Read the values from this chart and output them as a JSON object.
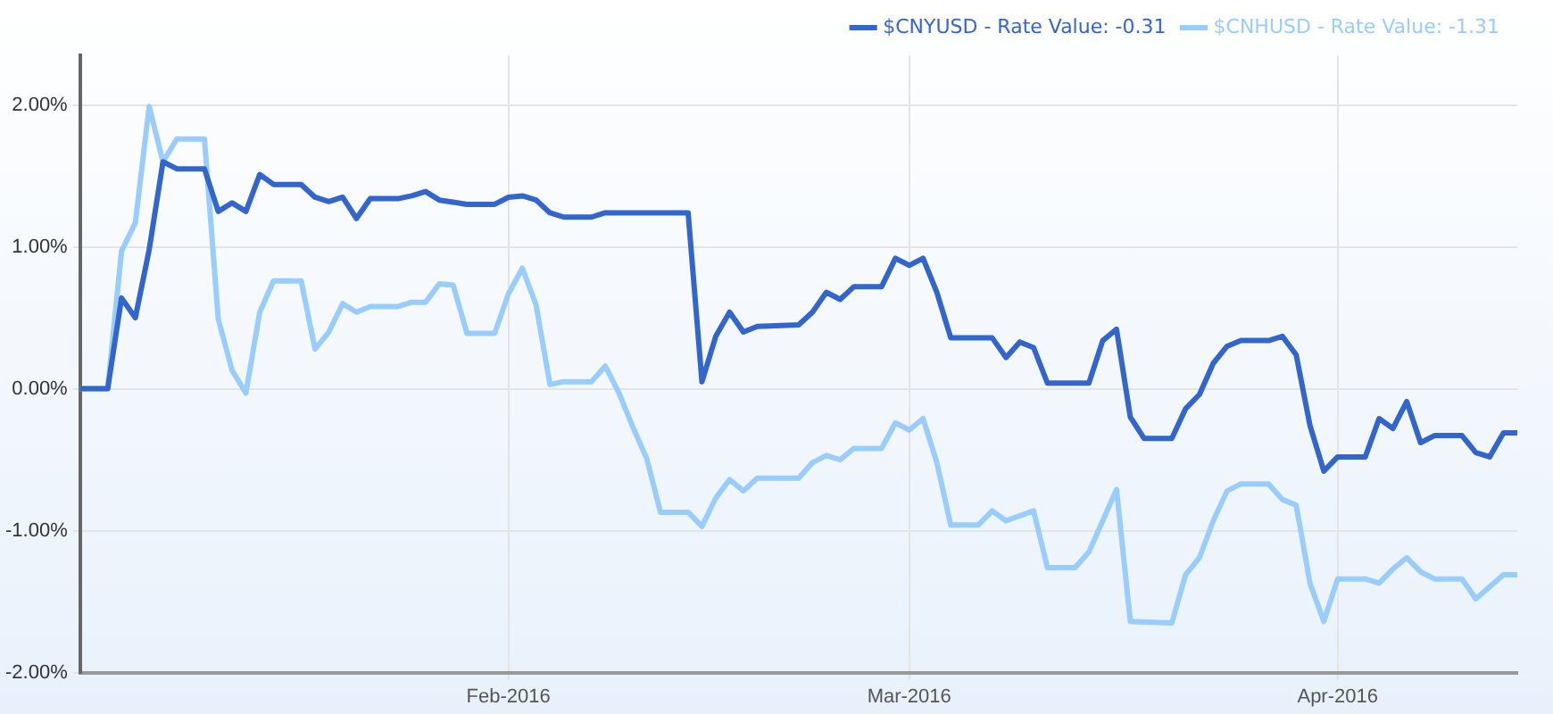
{
  "chart_data": {
    "type": "line",
    "legend": "top right",
    "grid": true,
    "marker": "none",
    "line_style": "solid",
    "xlim": [
      "2016-01-01",
      "2016-04-14"
    ],
    "xticks": [
      {
        "value": "2016-02-01",
        "label": "Feb-2016"
      },
      {
        "value": "2016-03-01",
        "label": "Mar-2016"
      },
      {
        "value": "2016-04-01",
        "label": "Apr-2016"
      }
    ],
    "ylim": [
      -2,
      2.35
    ],
    "yticks": [
      {
        "value": -2,
        "label": "-2.00%"
      },
      {
        "value": -1,
        "label": "-1.00%"
      },
      {
        "value": 0,
        "label": "0.00%"
      },
      {
        "value": 1,
        "label": "1.00%"
      },
      {
        "value": 2,
        "label": "2.00%"
      }
    ],
    "series": [
      {
        "name": "$CNYUSD - Rate Value: -0.31",
        "color": "#3366cc",
        "x": [
          "2016-01-01",
          "2016-01-03",
          "2016-01-04",
          "2016-01-05",
          "2016-01-06",
          "2016-01-07",
          "2016-01-08",
          "2016-01-10",
          "2016-01-11",
          "2016-01-12",
          "2016-01-13",
          "2016-01-14",
          "2016-01-15",
          "2016-01-17",
          "2016-01-18",
          "2016-01-19",
          "2016-01-20",
          "2016-01-21",
          "2016-01-22",
          "2016-01-24",
          "2016-01-25",
          "2016-01-26",
          "2016-01-27",
          "2016-01-29",
          "2016-01-31",
          "2016-02-01",
          "2016-02-02",
          "2016-02-03",
          "2016-02-04",
          "2016-02-05",
          "2016-02-07",
          "2016-02-08",
          "2016-02-14",
          "2016-02-15",
          "2016-02-16",
          "2016-02-17",
          "2016-02-18",
          "2016-02-19",
          "2016-02-22",
          "2016-02-23",
          "2016-02-24",
          "2016-02-25",
          "2016-02-26",
          "2016-02-28",
          "2016-02-29",
          "2016-03-01",
          "2016-03-02",
          "2016-03-03",
          "2016-03-04",
          "2016-03-07",
          "2016-03-08",
          "2016-03-09",
          "2016-03-10",
          "2016-03-11",
          "2016-03-14",
          "2016-03-15",
          "2016-03-16",
          "2016-03-17",
          "2016-03-18",
          "2016-03-20",
          "2016-03-21",
          "2016-03-22",
          "2016-03-23",
          "2016-03-24",
          "2016-03-25",
          "2016-03-27",
          "2016-03-28",
          "2016-03-29",
          "2016-03-30",
          "2016-03-31",
          "2016-04-01",
          "2016-04-03",
          "2016-04-04",
          "2016-04-05",
          "2016-04-06",
          "2016-04-07",
          "2016-04-08",
          "2016-04-10",
          "2016-04-11",
          "2016-04-12",
          "2016-04-13",
          "2016-04-14"
        ],
        "values": [
          0,
          0,
          0.64,
          0.5,
          0.98,
          1.6,
          1.55,
          1.55,
          1.25,
          1.31,
          1.25,
          1.51,
          1.44,
          1.44,
          1.35,
          1.32,
          1.35,
          1.2,
          1.34,
          1.34,
          1.36,
          1.39,
          1.33,
          1.3,
          1.3,
          1.35,
          1.36,
          1.33,
          1.24,
          1.21,
          1.21,
          1.24,
          1.24,
          0.05,
          0.37,
          0.54,
          0.4,
          0.44,
          0.45,
          0.54,
          0.68,
          0.63,
          0.72,
          0.72,
          0.92,
          0.87,
          0.92,
          0.68,
          0.36,
          0.36,
          0.22,
          0.33,
          0.29,
          0.04,
          0.04,
          0.34,
          0.42,
          -0.2,
          -0.35,
          -0.35,
          -0.14,
          -0.04,
          0.18,
          0.3,
          0.34,
          0.34,
          0.37,
          0.24,
          -0.26,
          -0.58,
          -0.48,
          -0.48,
          -0.21,
          -0.28,
          -0.09,
          -0.38,
          -0.33,
          -0.33,
          -0.45,
          -0.48,
          -0.31,
          -0.31
        ]
      },
      {
        "name": "$CNHUSD - Rate Value: -1.31",
        "color": "#99ccff",
        "x": [
          "2016-01-01",
          "2016-01-03",
          "2016-01-04",
          "2016-01-05",
          "2016-01-06",
          "2016-01-07",
          "2016-01-08",
          "2016-01-10",
          "2016-01-11",
          "2016-01-12",
          "2016-01-13",
          "2016-01-14",
          "2016-01-15",
          "2016-01-17",
          "2016-01-18",
          "2016-01-19",
          "2016-01-20",
          "2016-01-21",
          "2016-01-22",
          "2016-01-24",
          "2016-01-25",
          "2016-01-26",
          "2016-01-27",
          "2016-01-28",
          "2016-01-29",
          "2016-01-31",
          "2016-02-01",
          "2016-02-02",
          "2016-02-03",
          "2016-02-04",
          "2016-02-05",
          "2016-02-07",
          "2016-02-08",
          "2016-02-09",
          "2016-02-10",
          "2016-02-11",
          "2016-02-12",
          "2016-02-14",
          "2016-02-15",
          "2016-02-16",
          "2016-02-17",
          "2016-02-18",
          "2016-02-19",
          "2016-02-22",
          "2016-02-23",
          "2016-02-24",
          "2016-02-25",
          "2016-02-26",
          "2016-02-28",
          "2016-02-29",
          "2016-03-01",
          "2016-03-02",
          "2016-03-03",
          "2016-03-04",
          "2016-03-06",
          "2016-03-07",
          "2016-03-08",
          "2016-03-10",
          "2016-03-11",
          "2016-03-13",
          "2016-03-14",
          "2016-03-15",
          "2016-03-16",
          "2016-03-17",
          "2016-03-20",
          "2016-03-21",
          "2016-03-22",
          "2016-03-23",
          "2016-03-24",
          "2016-03-25",
          "2016-03-27",
          "2016-03-28",
          "2016-03-29",
          "2016-03-30",
          "2016-03-31",
          "2016-04-01",
          "2016-04-03",
          "2016-04-04",
          "2016-04-05",
          "2016-04-06",
          "2016-04-07",
          "2016-04-08",
          "2016-04-10",
          "2016-04-11",
          "2016-04-13",
          "2016-04-14"
        ],
        "values": [
          0,
          0,
          0.97,
          1.17,
          1.99,
          1.6,
          1.76,
          1.76,
          0.49,
          0.13,
          -0.03,
          0.54,
          0.76,
          0.76,
          0.28,
          0.4,
          0.6,
          0.54,
          0.58,
          0.58,
          0.61,
          0.61,
          0.74,
          0.73,
          0.39,
          0.39,
          0.67,
          0.85,
          0.59,
          0.03,
          0.05,
          0.05,
          0.16,
          -0.03,
          -0.27,
          -0.49,
          -0.87,
          -0.87,
          -0.97,
          -0.77,
          -0.64,
          -0.72,
          -0.63,
          -0.63,
          -0.52,
          -0.47,
          -0.5,
          -0.42,
          -0.42,
          -0.24,
          -0.29,
          -0.21,
          -0.52,
          -0.96,
          -0.96,
          -0.86,
          -0.93,
          -0.86,
          -1.26,
          -1.26,
          -1.15,
          -0.93,
          -0.71,
          -1.64,
          -1.65,
          -1.31,
          -1.19,
          -0.93,
          -0.72,
          -0.67,
          -0.67,
          -0.78,
          -0.82,
          -1.37,
          -1.64,
          -1.34,
          -1.34,
          -1.37,
          -1.27,
          -1.19,
          -1.29,
          -1.34,
          -1.34,
          -1.48,
          -1.31,
          -1.31
        ]
      }
    ]
  }
}
